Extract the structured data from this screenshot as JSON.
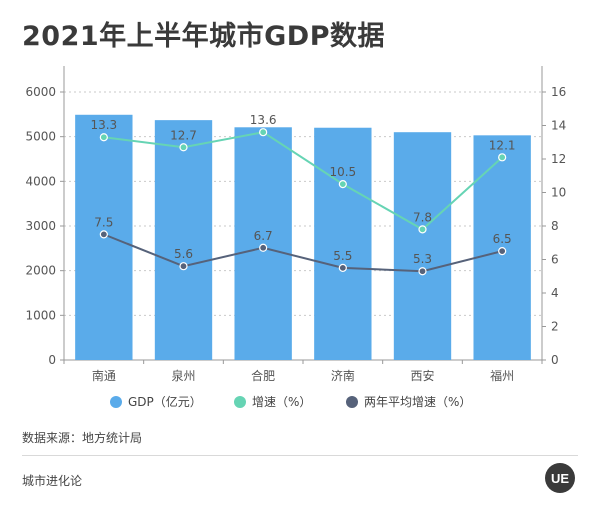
{
  "title": "2021年上半年城市GDP数据",
  "source": "数据来源：地方统计局",
  "brand": "城市进化论",
  "logo_text": "UE",
  "colors": {
    "bar": "#5aabea",
    "growth": "#66d4b4",
    "avg": "#56627a",
    "grid": "#c9c9c9",
    "axis": "#999999",
    "text": "#555555"
  },
  "chart_data": {
    "type": "bar",
    "categories": [
      "南通",
      "泉州",
      "合肥",
      "济南",
      "西安",
      "福州"
    ],
    "y_left": {
      "min": 0,
      "max": 6000,
      "ticks": [
        0,
        1000,
        2000,
        3000,
        4000,
        5000,
        6000
      ]
    },
    "y_right": {
      "min": 0,
      "max": 16,
      "ticks": [
        0,
        2,
        4,
        6,
        8,
        10,
        12,
        14,
        16
      ]
    },
    "grid": "dashed horizontal",
    "legend_position": "bottom",
    "series": [
      {
        "name": "GDP（亿元）",
        "type": "bar",
        "axis": "left",
        "values": [
          5490,
          5370,
          5210,
          5200,
          5100,
          5030
        ]
      },
      {
        "name": "增速（%）",
        "type": "line",
        "axis": "right",
        "values": [
          13.3,
          12.7,
          13.6,
          10.5,
          7.8,
          12.1
        ],
        "labels": [
          "13.3",
          "12.7",
          "13.6",
          "10.5",
          "7.8",
          "12.1"
        ]
      },
      {
        "name": "两年平均增速（%）",
        "type": "line",
        "axis": "right",
        "values": [
          7.5,
          5.6,
          6.7,
          5.5,
          5.3,
          6.5
        ],
        "labels": [
          "7.5",
          "5.6",
          "6.7",
          "5.5",
          "5.3",
          "6.5"
        ]
      }
    ]
  }
}
